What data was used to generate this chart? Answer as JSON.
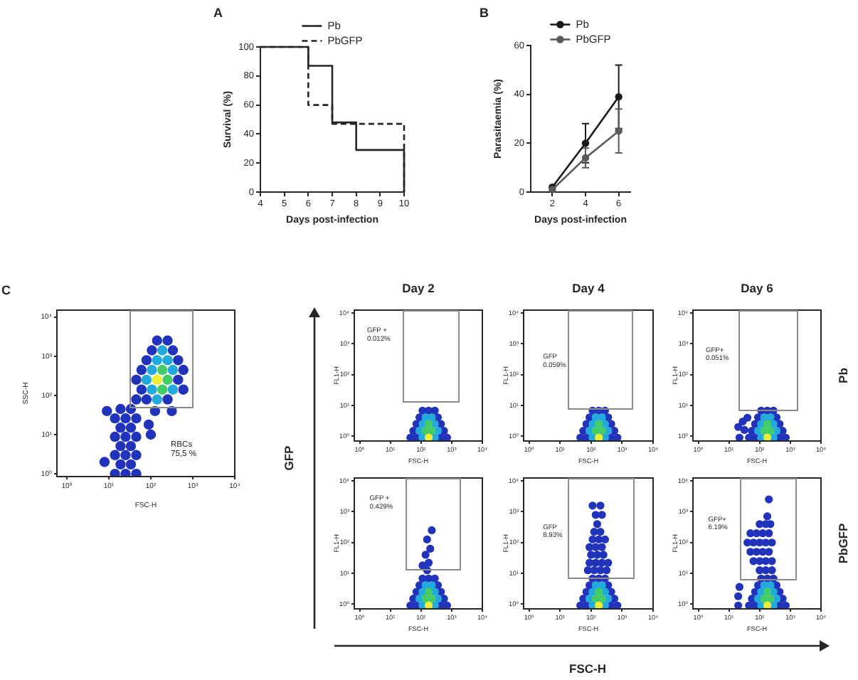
{
  "chart_data": [
    {
      "type": "step",
      "title": "A",
      "xlabel": "Days post-infection",
      "ylabel": "Survival (%)",
      "xlim": [
        4,
        10
      ],
      "xticks": [
        4,
        5,
        6,
        7,
        8,
        9,
        10
      ],
      "ylim": [
        0,
        100
      ],
      "yticks": [
        0,
        20,
        40,
        60,
        80,
        100
      ],
      "legend": "top",
      "series": [
        {
          "name": "Pb",
          "color": "#262626",
          "x": [
            4,
            6,
            7,
            8,
            10
          ],
          "values": [
            100,
            87,
            48,
            29,
            0
          ]
        },
        {
          "name": "PbGFP",
          "color": "#262626",
          "line_style": "dashed",
          "x": [
            4,
            6,
            7,
            10
          ],
          "values": [
            100,
            60,
            47,
            0
          ]
        }
      ]
    },
    {
      "type": "line",
      "title": "B",
      "xlabel": "Days post-infection",
      "ylabel": "Parasitaemia (%)",
      "x": [
        2,
        4,
        6
      ],
      "xlim": [
        0.7,
        6.7
      ],
      "xticks": [
        2,
        4,
        6
      ],
      "ylim": [
        0,
        60
      ],
      "yticks": [
        0,
        20,
        40,
        60
      ],
      "legend": "top",
      "marker": "circle",
      "series": [
        {
          "name": "Pb",
          "color": "#1a1a1a",
          "values": [
            2,
            20,
            39
          ],
          "errors": [
            null,
            8,
            13
          ]
        },
        {
          "name": "PbGFP",
          "color": "#5a5a5a",
          "values": [
            1,
            14,
            25
          ],
          "errors": [
            null,
            4,
            9
          ]
        }
      ]
    },
    {
      "type": "scatter",
      "title": "C",
      "xlabel": "FSC-H",
      "ylabel": "SSC-H",
      "log": "xy",
      "marker": "circle",
      "xlim": [
        0.58,
        10000
      ],
      "ylim": [
        0.85,
        15000
      ],
      "xticks": [
        {
          "value": 1,
          "label": "10⁰"
        },
        {
          "value": 10,
          "label": "10¹"
        },
        {
          "value": 100,
          "label": "10²"
        },
        {
          "value": 1000,
          "label": "10³"
        },
        {
          "value": 10000,
          "label": "10⁴"
        }
      ],
      "yticks": [
        {
          "value": 1,
          "label": "10⁰"
        },
        {
          "value": 10,
          "label": "10¹"
        },
        {
          "value": 100,
          "label": "10²"
        },
        {
          "value": 1000,
          "label": "10³"
        },
        {
          "value": 10000,
          "label": "10⁴"
        }
      ],
      "annotations": [
        "RBCs 75,5 %"
      ],
      "series": [
        {
          "color": "#2233bb",
          "x": [
            141,
            251,
            106,
            335,
            79,
            447,
            60,
            596,
            45,
            447,
            60,
            596,
            45,
            79,
            251,
            19,
            33.5,
            14,
            25,
            45,
            19,
            33.5,
            14,
            25,
            45,
            19,
            33.5,
            14,
            25,
            45,
            19,
            33.5,
            14,
            25,
            45,
            9,
            7.9,
            89,
            100,
            316,
            126
          ],
          "values": [
            2512,
            2512,
            1413,
            1413,
            794,
            794,
            447,
            447,
            251,
            251,
            141,
            141,
            79,
            79,
            79,
            45,
            45,
            26,
            26,
            26,
            15,
            15,
            8.8,
            8.8,
            8.8,
            5.1,
            5.1,
            3,
            3,
            3,
            1.74,
            1.74,
            1,
            1,
            1,
            40,
            2,
            18,
            10,
            40,
            40
          ]
        },
        {
          "color": "#22aadd",
          "x": [
            188,
            141,
            251,
            106,
            335,
            79,
            106,
            335,
            141
          ],
          "values": [
            1413,
            794,
            794,
            447,
            447,
            251,
            141,
            141,
            79
          ]
        },
        {
          "color": "#44cc66",
          "x": [
            251,
            188,
            188
          ],
          "values": [
            251,
            141,
            447
          ]
        },
        {
          "color": "#eeee33",
          "x": [
            141
          ],
          "values": [
            251
          ]
        }
      ]
    },
    {
      "type": "scatter",
      "title": "Day 2",
      "xlabel": "FSC-H",
      "ylabel": "FL1-H",
      "log": "xy",
      "marker": "circle",
      "xlim": [
        0.67,
        10000
      ],
      "ylim": [
        0.72,
        12500
      ],
      "xticks": [
        {
          "value": 1,
          "label": "10⁰"
        },
        {
          "value": 10,
          "label": "10¹"
        },
        {
          "value": 100,
          "label": "10²"
        },
        {
          "value": 1000,
          "label": "10³"
        },
        {
          "value": 10000,
          "label": "10⁴"
        }
      ],
      "yticks": [
        {
          "value": 1,
          "label": "10⁰"
        },
        {
          "value": 10,
          "label": "10¹"
        },
        {
          "value": 100,
          "label": "10²"
        },
        {
          "value": 1000,
          "label": "10³"
        },
        {
          "value": 10000,
          "label": "10⁴"
        }
      ],
      "annotations": [
        "GFP + 0.012%"
      ],
      "series": [
        {
          "color": "#2233bb",
          "x": [
            45,
            71,
            447,
            708,
            56,
            562,
            71,
            447,
            89,
            355,
            112,
            178,
            282
          ],
          "values": [
            0.9,
            0.9,
            0.9,
            0.9,
            1.5,
            1.5,
            2.5,
            2.5,
            4.1,
            4.1,
            6.8,
            6.8,
            6.8
          ]
        },
        {
          "color": "#22aadd",
          "x": [
            112,
            282,
            89,
            355,
            112,
            282,
            141,
            224
          ],
          "values": [
            0.9,
            0.9,
            1.5,
            1.5,
            2.5,
            2.5,
            4.1,
            4.1
          ]
        },
        {
          "color": "#44cc66",
          "x": [
            141,
            224,
            178
          ],
          "values": [
            1.5,
            1.5,
            2.5
          ]
        },
        {
          "color": "#eeee33",
          "x": [
            178
          ],
          "values": [
            0.9
          ]
        }
      ]
    },
    {
      "type": "scatter",
      "title": "Day 4",
      "xlabel": "FSC-H",
      "ylabel": "FL1-H",
      "log": "xy",
      "marker": "circle",
      "xlim": [
        0.67,
        10000
      ],
      "ylim": [
        0.72,
        12500
      ],
      "xticks": [
        {
          "value": 1,
          "label": "10⁰"
        },
        {
          "value": 10,
          "label": "10¹"
        },
        {
          "value": 100,
          "label": "10²"
        },
        {
          "value": 1000,
          "label": "10³"
        },
        {
          "value": 10000,
          "label": "10⁴"
        }
      ],
      "yticks": [
        {
          "value": 1,
          "label": "10⁰"
        },
        {
          "value": 10,
          "label": "10¹"
        },
        {
          "value": 100,
          "label": "10²"
        },
        {
          "value": 1000,
          "label": "10³"
        },
        {
          "value": 10000,
          "label": "10⁴"
        }
      ],
      "annotations": [
        "GFP 0.059%"
      ],
      "series": [
        {
          "color": "#2233bb",
          "x": [
            45,
            71,
            447,
            708,
            56,
            562,
            71,
            447,
            89,
            355,
            112,
            178,
            282
          ],
          "values": [
            0.9,
            0.9,
            0.9,
            0.9,
            1.5,
            1.5,
            2.5,
            2.5,
            4.1,
            4.1,
            6.8,
            6.8,
            6.8
          ]
        },
        {
          "color": "#22aadd",
          "x": [
            112,
            282,
            89,
            355,
            112,
            282,
            141,
            224
          ],
          "values": [
            0.9,
            0.9,
            1.5,
            1.5,
            2.5,
            2.5,
            4.1,
            4.1
          ]
        },
        {
          "color": "#44cc66",
          "x": [
            141,
            224,
            178
          ],
          "values": [
            1.5,
            1.5,
            2.5
          ]
        },
        {
          "color": "#eeee33",
          "x": [
            178
          ],
          "values": [
            0.9
          ]
        }
      ]
    },
    {
      "type": "scatter",
      "title": "Day 6",
      "xlabel": "FSC-H",
      "ylabel": "FL1-H",
      "y2label": "Pb",
      "log": "xy",
      "marker": "circle",
      "xlim": [
        0.67,
        10000
      ],
      "ylim": [
        0.72,
        12500
      ],
      "xticks": [
        {
          "value": 1,
          "label": "10⁰"
        },
        {
          "value": 10,
          "label": "10¹"
        },
        {
          "value": 100,
          "label": "10²"
        },
        {
          "value": 1000,
          "label": "10³"
        },
        {
          "value": 10000,
          "label": "10⁴"
        }
      ],
      "yticks": [
        {
          "value": 1,
          "label": "10⁰"
        },
        {
          "value": 10,
          "label": "10¹"
        },
        {
          "value": 100,
          "label": "10²"
        },
        {
          "value": 1000,
          "label": "10³"
        },
        {
          "value": 10000,
          "label": "10⁴"
        }
      ],
      "annotations": [
        "GFP+ 0.051%"
      ],
      "series": [
        {
          "color": "#2233bb",
          "x": [
            45,
            71,
            447,
            708,
            56,
            562,
            71,
            447,
            89,
            355,
            112,
            178,
            282,
            22,
            32,
            28,
            20,
            40
          ],
          "values": [
            0.9,
            0.9,
            0.9,
            0.9,
            1.5,
            1.5,
            2.5,
            2.5,
            4.1,
            4.1,
            6.8,
            6.8,
            6.8,
            0.9,
            1.6,
            3,
            2,
            4
          ]
        },
        {
          "color": "#22aadd",
          "x": [
            112,
            282,
            89,
            355,
            112,
            282,
            141,
            224
          ],
          "values": [
            0.9,
            0.9,
            1.5,
            1.5,
            2.5,
            2.5,
            4.1,
            4.1
          ]
        },
        {
          "color": "#44cc66",
          "x": [
            141,
            224,
            178
          ],
          "values": [
            1.5,
            1.5,
            2.5
          ]
        },
        {
          "color": "#eeee33",
          "x": [
            178
          ],
          "values": [
            0.9
          ]
        }
      ]
    },
    {
      "type": "scatter",
      "xlabel": "FSC-H",
      "ylabel": "FL1-H",
      "log": "xy",
      "marker": "circle",
      "xlim": [
        0.67,
        10000
      ],
      "ylim": [
        0.72,
        12500
      ],
      "xticks": [
        {
          "value": 1,
          "label": "10⁰"
        },
        {
          "value": 10,
          "label": "10¹"
        },
        {
          "value": 100,
          "label": "10²"
        },
        {
          "value": 1000,
          "label": "10³"
        },
        {
          "value": 10000,
          "label": "10⁴"
        }
      ],
      "yticks": [
        {
          "value": 1,
          "label": "10⁰"
        },
        {
          "value": 10,
          "label": "10¹"
        },
        {
          "value": 100,
          "label": "10²"
        },
        {
          "value": 1000,
          "label": "10³"
        },
        {
          "value": 10000,
          "label": "10⁴"
        }
      ],
      "annotations": [
        "GFP + 0.429%"
      ],
      "series": [
        {
          "color": "#2233bb",
          "x": [
            45,
            71,
            447,
            708,
            56,
            562,
            71,
            447,
            89,
            355,
            112,
            178,
            282,
            158,
            178,
            141,
            200,
            158,
            224,
            112
          ],
          "values": [
            0.9,
            0.9,
            0.9,
            0.9,
            1.5,
            1.5,
            2.5,
            2.5,
            4.1,
            4.1,
            6.8,
            6.8,
            6.8,
            12.6,
            22,
            40,
            63,
            126,
            251,
            18
          ]
        },
        {
          "color": "#22aadd",
          "x": [
            112,
            282,
            89,
            355,
            112,
            282,
            141,
            224
          ],
          "values": [
            0.9,
            0.9,
            1.5,
            1.5,
            2.5,
            2.5,
            4.1,
            4.1
          ]
        },
        {
          "color": "#44cc66",
          "x": [
            141,
            224,
            178
          ],
          "values": [
            1.5,
            1.5,
            2.5
          ]
        },
        {
          "color": "#eeee33",
          "x": [
            178
          ],
          "values": [
            0.9
          ]
        }
      ]
    },
    {
      "type": "scatter",
      "xlabel": "FSC-H",
      "ylabel": "FL1-H",
      "log": "xy",
      "marker": "circle",
      "xlim": [
        0.67,
        10000
      ],
      "ylim": [
        0.72,
        12500
      ],
      "xticks": [
        {
          "value": 1,
          "label": "10⁰"
        },
        {
          "value": 10,
          "label": "10¹"
        },
        {
          "value": 100,
          "label": "10²"
        },
        {
          "value": 1000,
          "label": "10³"
        },
        {
          "value": 10000,
          "label": "10⁴"
        }
      ],
      "yticks": [
        {
          "value": 1,
          "label": "10⁰"
        },
        {
          "value": 10,
          "label": "10¹"
        },
        {
          "value": 100,
          "label": "10²"
        },
        {
          "value": 1000,
          "label": "10³"
        },
        {
          "value": 10000,
          "label": "10⁴"
        }
      ],
      "annotations": [
        "GFP 8.93%"
      ],
      "series": [
        {
          "color": "#2233bb",
          "x": [
            45,
            71,
            447,
            708,
            56,
            562,
            71,
            447,
            89,
            355,
            112,
            178,
            282,
            79,
            126,
            200,
            316,
            89,
            141,
            224,
            355,
            100,
            158,
            251,
            89,
            141,
            224,
            112,
            178,
            282,
            126,
            200,
            158,
            141,
            224,
            112,
            200
          ],
          "values": [
            0.9,
            0.9,
            0.9,
            0.9,
            1.5,
            1.5,
            2.5,
            2.5,
            4.1,
            4.1,
            6.8,
            6.8,
            6.8,
            12.6,
            12.6,
            12.6,
            12.6,
            22,
            22,
            22,
            22,
            40,
            40,
            40,
            71,
            71,
            71,
            126,
            126,
            126,
            224,
            224,
            398,
            794,
            794,
            1585,
            1585
          ]
        },
        {
          "color": "#22aadd",
          "x": [
            112,
            282,
            89,
            355,
            112,
            282,
            141,
            224
          ],
          "values": [
            0.9,
            0.9,
            1.5,
            1.5,
            2.5,
            2.5,
            4.1,
            4.1
          ]
        },
        {
          "color": "#44cc66",
          "x": [
            141,
            224,
            178
          ],
          "values": [
            1.5,
            1.5,
            2.5
          ]
        },
        {
          "color": "#eeee33",
          "x": [
            178
          ],
          "values": [
            0.9
          ]
        }
      ]
    },
    {
      "type": "scatter",
      "xlabel": "FSC-H",
      "ylabel": "FL1-H",
      "y2label": "PbGFP",
      "log": "xy",
      "marker": "circle",
      "xlim": [
        0.67,
        10000
      ],
      "ylim": [
        0.72,
        12500
      ],
      "xticks": [
        {
          "value": 1,
          "label": "10⁰"
        },
        {
          "value": 10,
          "label": "10¹"
        },
        {
          "value": 100,
          "label": "10²"
        },
        {
          "value": 1000,
          "label": "10³"
        },
        {
          "value": 10000,
          "label": "10⁴"
        }
      ],
      "yticks": [
        {
          "value": 1,
          "label": "10⁰"
        },
        {
          "value": 10,
          "label": "10¹"
        },
        {
          "value": 100,
          "label": "10²"
        },
        {
          "value": 1000,
          "label": "10³"
        },
        {
          "value": 10000,
          "label": "10⁴"
        }
      ],
      "annotations": [
        "GFP+ 6.19%"
      ],
      "series": [
        {
          "color": "#2233bb",
          "x": [
            45,
            71,
            447,
            708,
            56,
            562,
            71,
            447,
            89,
            355,
            112,
            178,
            282,
            20,
            20,
            22,
            100,
            158,
            251,
            63,
            100,
            158,
            251,
            50,
            79,
            126,
            200,
            40,
            63,
            100,
            158,
            251,
            50,
            79,
            126,
            200,
            100,
            158,
            224,
            178,
            200
          ],
          "values": [
            0.9,
            0.9,
            0.9,
            0.9,
            1.5,
            1.5,
            2.5,
            2.5,
            4.1,
            4.1,
            6.8,
            6.8,
            6.8,
            0.9,
            1.8,
            3.6,
            12.6,
            12.6,
            12.6,
            25,
            25,
            25,
            25,
            50,
            50,
            50,
            50,
            100,
            100,
            100,
            100,
            100,
            200,
            200,
            200,
            200,
            398,
            398,
            398,
            708,
            2512
          ]
        },
        {
          "color": "#22aadd",
          "x": [
            112,
            282,
            89,
            355,
            112,
            282,
            141,
            224
          ],
          "values": [
            0.9,
            0.9,
            1.5,
            1.5,
            2.5,
            2.5,
            4.1,
            4.1
          ]
        },
        {
          "color": "#44cc66",
          "x": [
            141,
            224,
            178
          ],
          "values": [
            1.5,
            1.5,
            2.5
          ]
        },
        {
          "color": "#eeee33",
          "x": [
            178
          ],
          "values": [
            0.9
          ]
        }
      ]
    },
    {
      "type": "other",
      "xlabel": "FSC-H",
      "ylabel": "GFP"
    }
  ]
}
